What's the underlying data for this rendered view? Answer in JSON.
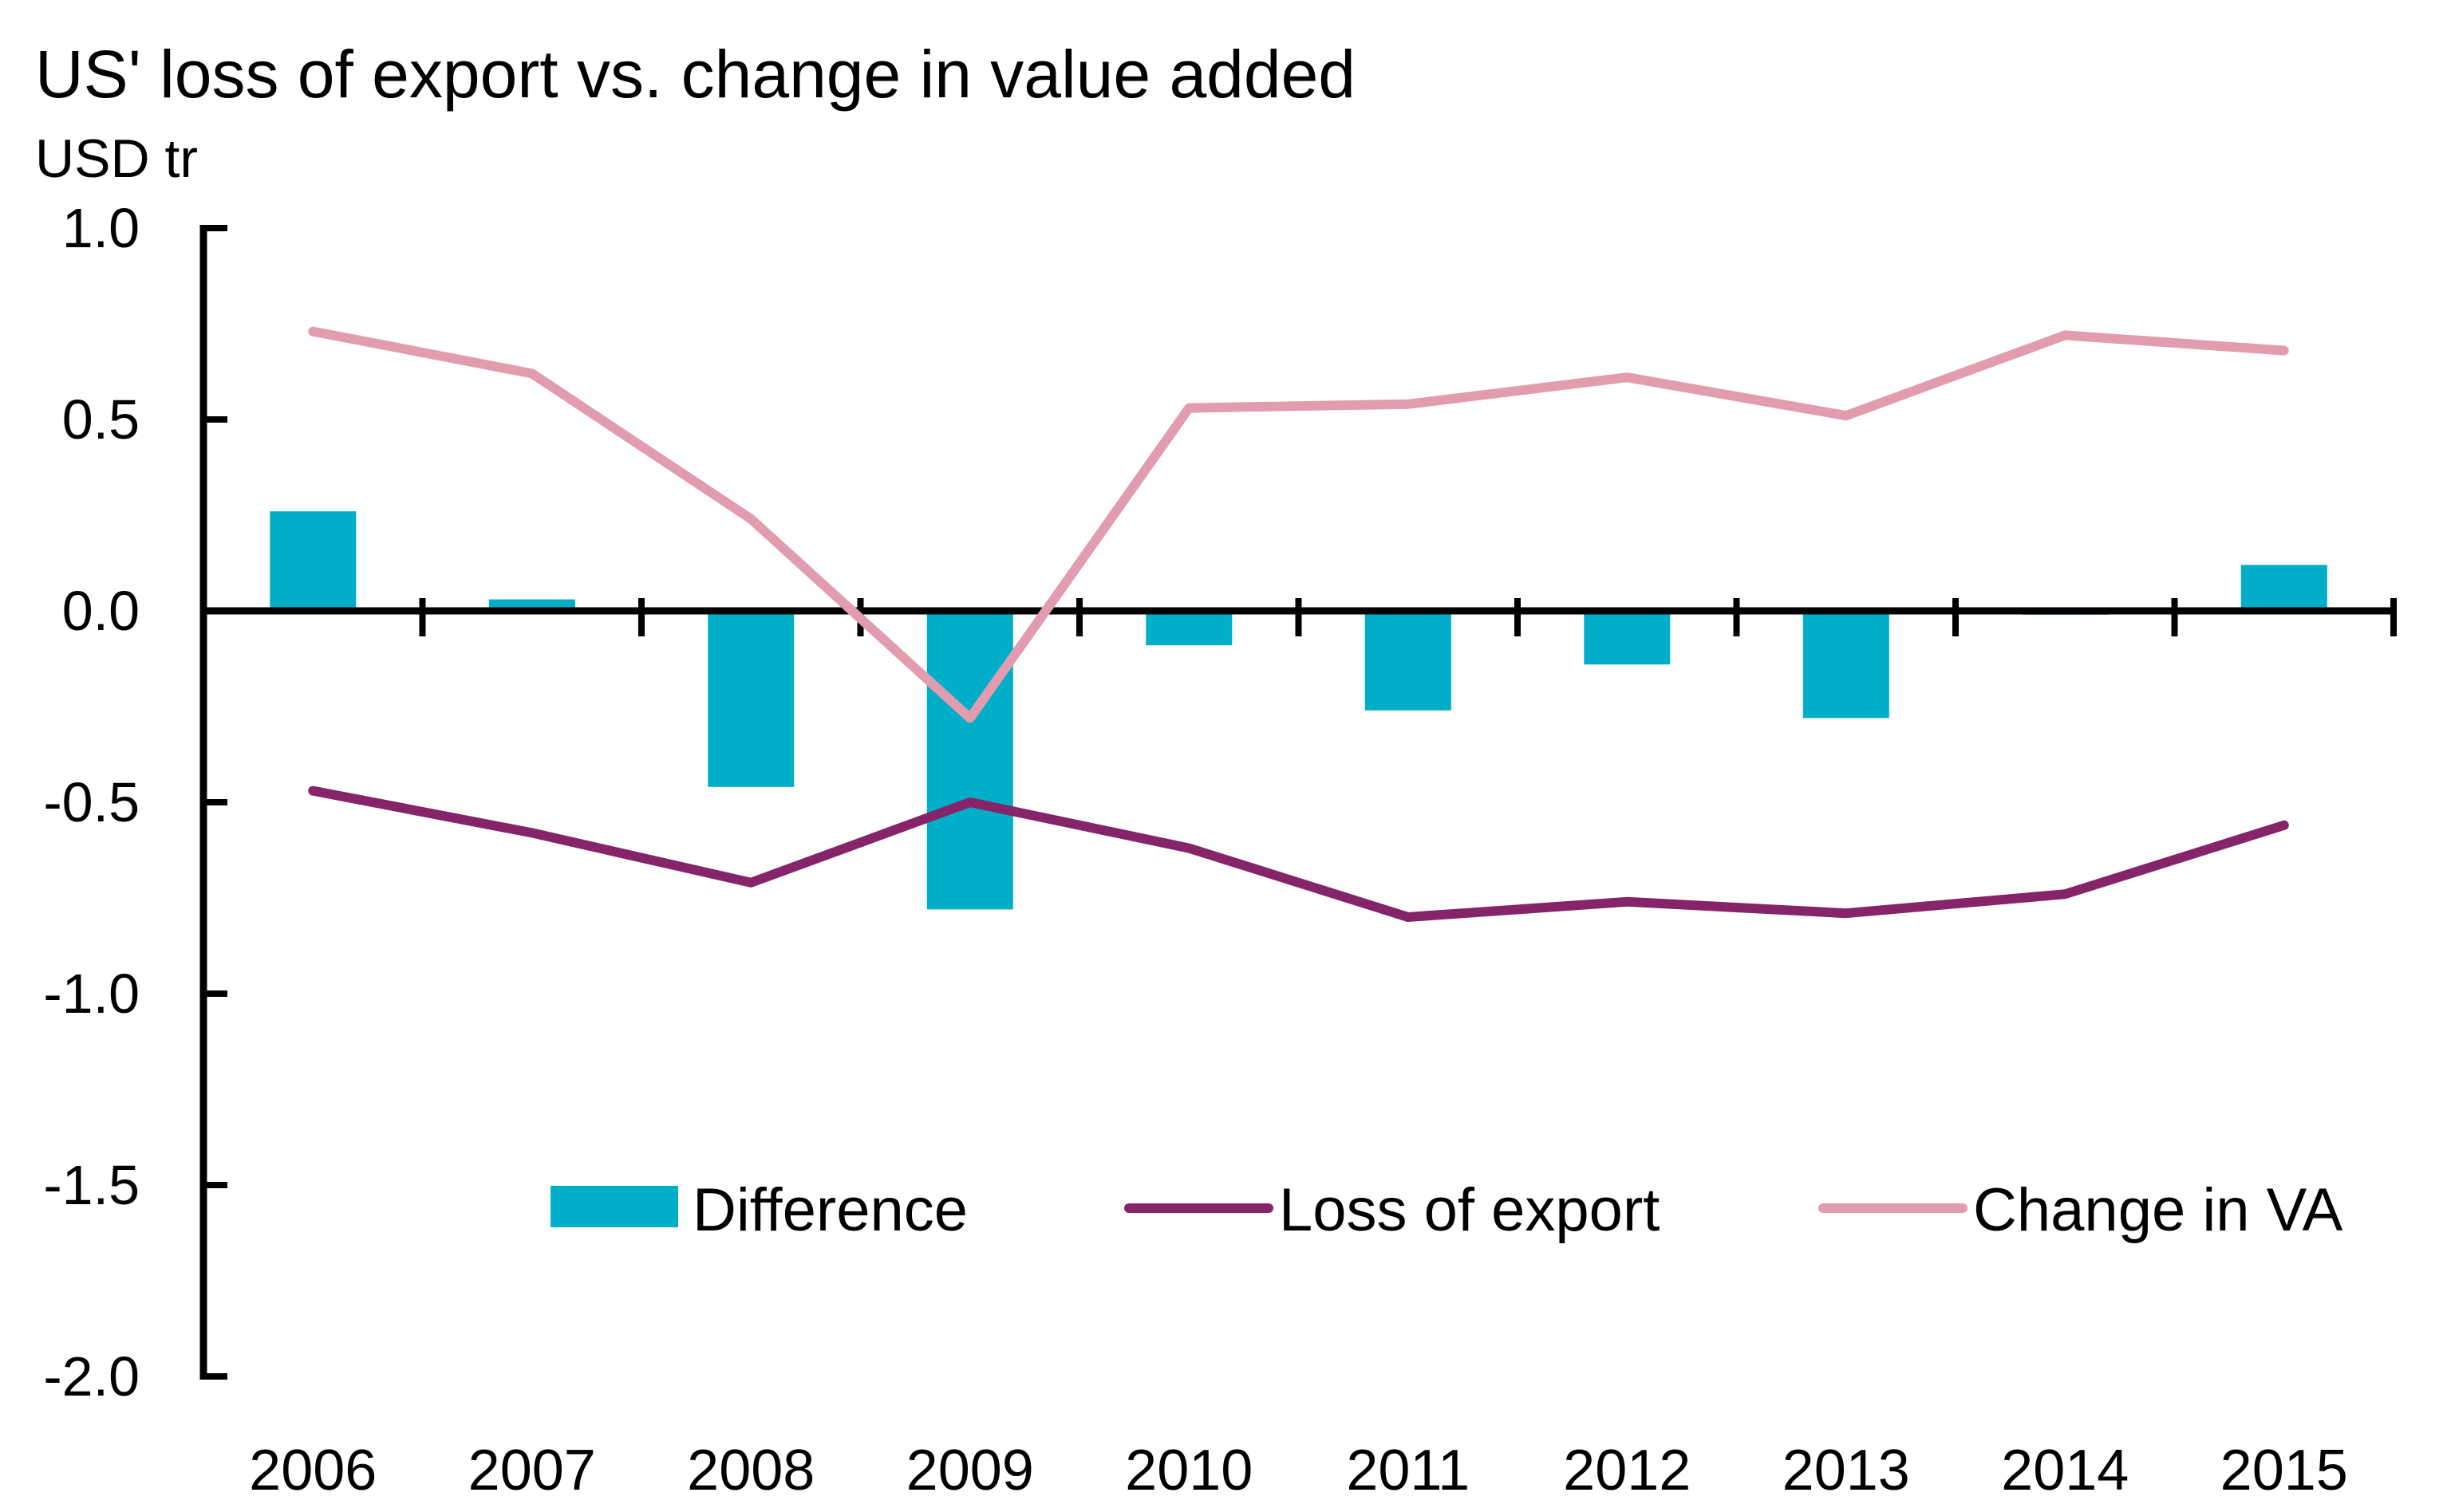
{
  "chart_data": {
    "type": "bar+line",
    "title": "US' loss of export vs. change in value added",
    "ylabel": "USD tr",
    "xlabel": "",
    "categories": [
      "2006",
      "2007",
      "2008",
      "2009",
      "2010",
      "2011",
      "2012",
      "2013",
      "2014",
      "2015"
    ],
    "ylim": [
      -2.0,
      1.0
    ],
    "yticks": [
      1.0,
      0.5,
      0.0,
      -0.5,
      -1.0,
      -1.5,
      -2.0
    ],
    "ytick_labels": [
      "1.0",
      "0.5",
      "0.0",
      "-0.5",
      "-1.0",
      "-1.5",
      "-2.0"
    ],
    "grid": false,
    "legend_position": "bottom-center",
    "series": [
      {
        "name": "Difference",
        "kind": "bar",
        "color": "#00AEC7",
        "values": [
          0.26,
          0.03,
          -0.46,
          -0.78,
          -0.09,
          -0.26,
          -0.14,
          -0.28,
          -0.01,
          0.12
        ]
      },
      {
        "name": "Loss of export",
        "kind": "line",
        "color": "#862469",
        "values": [
          -0.47,
          -0.58,
          -0.71,
          -0.5,
          -0.62,
          -0.8,
          -0.76,
          -0.79,
          -0.74,
          -0.56
        ]
      },
      {
        "name": "Change in VA",
        "kind": "line",
        "color": "#E29CAF",
        "values": [
          0.73,
          0.62,
          0.24,
          -0.28,
          0.53,
          0.54,
          0.61,
          0.51,
          0.72,
          0.68
        ]
      }
    ]
  }
}
